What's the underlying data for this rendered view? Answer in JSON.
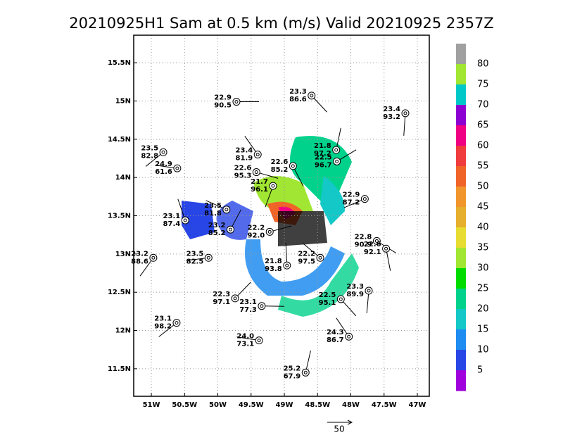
{
  "title": "20210925H1 Sam at 0.5 km (m/s) Valid 20210925 2357Z",
  "map": {
    "xlim": [
      -51.265,
      -46.82
    ],
    "ylim": [
      11.14,
      15.86
    ],
    "xticks": [
      {
        "value": -51,
        "label": "51W"
      },
      {
        "value": -50.5,
        "label": "50.5W"
      },
      {
        "value": -50,
        "label": "50W"
      },
      {
        "value": -49.5,
        "label": "49.5W"
      },
      {
        "value": -49,
        "label": "49W"
      },
      {
        "value": -48.5,
        "label": "48.5W"
      },
      {
        "value": -48,
        "label": "48W"
      },
      {
        "value": -47.5,
        "label": "47.5W"
      },
      {
        "value": -47,
        "label": "47W"
      }
    ],
    "yticks": [
      {
        "value": 11.5,
        "label": "11.5N"
      },
      {
        "value": 12,
        "label": "12N"
      },
      {
        "value": 12.5,
        "label": "12.5N"
      },
      {
        "value": 13,
        "label": "13N"
      },
      {
        "value": 13.5,
        "label": "13.5N"
      },
      {
        "value": 14,
        "label": "14N"
      },
      {
        "value": 14.5,
        "label": "14.5N"
      },
      {
        "value": 15,
        "label": "15N"
      },
      {
        "value": 15.5,
        "label": "15.5N"
      }
    ],
    "grid": true,
    "stations": [
      {
        "lon": -49.72,
        "lat": 14.99,
        "temp": "22.9",
        "pres": "90.5"
      },
      {
        "lon": -48.59,
        "lat": 15.07,
        "temp": "23.3",
        "pres": "86.6"
      },
      {
        "lon": -47.18,
        "lat": 14.84,
        "temp": "23.4",
        "pres": "93.2"
      },
      {
        "lon": -50.82,
        "lat": 14.33,
        "temp": "23.5",
        "pres": "82.8"
      },
      {
        "lon": -50.61,
        "lat": 14.12,
        "temp": "24.9",
        "pres": "61.6"
      },
      {
        "lon": -49.4,
        "lat": 14.3,
        "temp": "23.4",
        "pres": "81.9"
      },
      {
        "lon": -48.22,
        "lat": 14.36,
        "temp": "21.8",
        "pres": "97.2"
      },
      {
        "lon": -48.21,
        "lat": 14.21,
        "temp": "22.5",
        "pres": "96.7"
      },
      {
        "lon": -49.42,
        "lat": 14.07,
        "temp": "22.6",
        "pres": "95.3"
      },
      {
        "lon": -48.87,
        "lat": 14.15,
        "temp": "22.6",
        "pres": "85.2"
      },
      {
        "lon": -49.17,
        "lat": 13.89,
        "temp": "21.7",
        "pres": "96.1"
      },
      {
        "lon": -47.79,
        "lat": 13.72,
        "temp": "22.9",
        "pres": "87.2"
      },
      {
        "lon": -49.87,
        "lat": 13.58,
        "temp": "23.5",
        "pres": "81.8"
      },
      {
        "lon": -50.49,
        "lat": 13.44,
        "temp": "23.1",
        "pres": "87.4"
      },
      {
        "lon": -49.81,
        "lat": 13.32,
        "temp": "23.2",
        "pres": "85.2"
      },
      {
        "lon": -49.22,
        "lat": 13.29,
        "temp": "22.2",
        "pres": "92.0"
      },
      {
        "lon": -47.61,
        "lat": 13.17,
        "temp": "22.8",
        "pres": "90.9"
      },
      {
        "lon": -47.47,
        "lat": 13.07,
        "temp": "22.6",
        "pres": "92.1"
      },
      {
        "lon": -50.97,
        "lat": 12.95,
        "temp": "23.2",
        "pres": "88.6"
      },
      {
        "lon": -50.14,
        "lat": 12.95,
        "temp": "23.5",
        "pres": "82.5"
      },
      {
        "lon": -48.46,
        "lat": 12.95,
        "temp": "22.2",
        "pres": "97.5"
      },
      {
        "lon": -48.96,
        "lat": 12.85,
        "temp": "21.8",
        "pres": "93.8"
      },
      {
        "lon": -49.74,
        "lat": 12.42,
        "temp": "22.3",
        "pres": "97.1"
      },
      {
        "lon": -49.34,
        "lat": 12.32,
        "temp": "23.1",
        "pres": "77.3"
      },
      {
        "lon": -48.15,
        "lat": 12.41,
        "temp": "22.5",
        "pres": "95.1"
      },
      {
        "lon": -47.73,
        "lat": 12.52,
        "temp": "23.3",
        "pres": "89.9"
      },
      {
        "lon": -50.62,
        "lat": 12.1,
        "temp": "23.1",
        "pres": "98.2"
      },
      {
        "lon": -49.38,
        "lat": 11.87,
        "temp": "24.0",
        "pres": "73.1"
      },
      {
        "lon": -48.03,
        "lat": 11.92,
        "temp": "24.3",
        "pres": "86.7"
      },
      {
        "lon": -48.68,
        "lat": 11.45,
        "temp": "25.2",
        "pres": "67.9"
      }
    ]
  },
  "colorbar": {
    "levels": [
      80,
      75,
      70,
      65,
      60,
      55,
      50,
      45,
      40,
      35,
      30,
      25,
      20,
      15,
      10,
      5
    ],
    "colors": [
      "#a0a0a0",
      "#a0e632",
      "#00c8c8",
      "#8c00d2",
      "#f00082",
      "#f03c3c",
      "#f06428",
      "#f0962d",
      "#e6af2d",
      "#e6dc32",
      "#a0e632",
      "#00dc00",
      "#00d28c",
      "#14c8c8",
      "#1e8cf0",
      "#2846e6",
      "#a000dc"
    ]
  },
  "scale_label": "50"
}
